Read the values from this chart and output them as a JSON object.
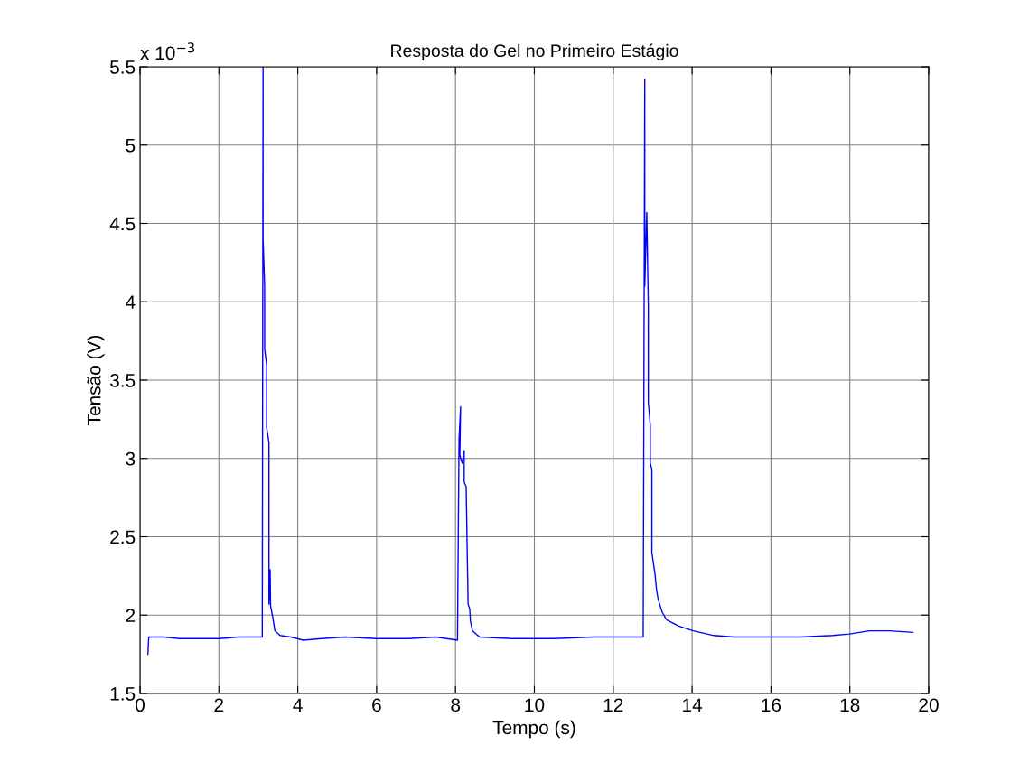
{
  "chart_data": {
    "type": "line",
    "title": "Resposta do Gel no Primeiro Estágio",
    "xlabel": "Tempo (s)",
    "ylabel": "Tensão (V)",
    "annotations": [
      "x 10$^{−3}$"
    ],
    "series": [
      {
        "color": "#0000ff",
        "x": [
          0.2,
          0.22,
          0.25,
          0.6,
          1.0,
          1.5,
          2.0,
          2.5,
          3.0,
          3.1,
          3.12,
          3.12,
          3.16,
          3.16,
          3.21,
          3.21,
          3.27,
          3.27,
          3.3,
          3.31,
          3.37,
          3.42,
          3.55,
          3.82,
          4.14,
          4.6,
          5.2,
          6.0,
          6.8,
          7.5,
          8.05,
          8.09,
          8.13,
          8.11,
          8.17,
          8.22,
          8.22,
          8.27,
          8.32,
          8.36,
          8.38,
          8.43,
          8.61,
          9.43,
          10.5,
          11.5,
          12.7,
          12.76,
          12.8,
          12.8,
          12.85,
          12.89,
          12.89,
          12.94,
          12.94,
          12.98,
          12.98,
          13.06,
          13.1,
          13.14,
          13.24,
          13.35,
          13.66,
          14.03,
          14.55,
          15.07,
          16.0,
          16.74,
          17.57,
          17.99,
          18.5,
          19.0,
          19.6
        ],
        "values": [
          1.75,
          1.86,
          1.86,
          1.86,
          1.85,
          1.85,
          1.85,
          1.86,
          1.86,
          1.86,
          5.5,
          4.4,
          4.1,
          3.7,
          3.6,
          3.2,
          3.1,
          2.07,
          2.29,
          2.06,
          1.98,
          1.9,
          1.87,
          1.86,
          1.84,
          1.85,
          1.86,
          1.85,
          1.85,
          1.86,
          1.84,
          3.13,
          3.33,
          3.02,
          2.97,
          3.05,
          2.85,
          2.82,
          2.07,
          2.04,
          1.96,
          1.9,
          1.86,
          1.85,
          1.85,
          1.86,
          1.86,
          1.86,
          5.42,
          4.1,
          4.57,
          3.98,
          3.36,
          3.21,
          2.97,
          2.93,
          2.4,
          2.26,
          2.16,
          2.1,
          2.02,
          1.97,
          1.93,
          1.9,
          1.87,
          1.86,
          1.86,
          1.86,
          1.87,
          1.88,
          1.9,
          1.9,
          1.89
        ]
      }
    ],
    "xlim": [
      0,
      20
    ],
    "xticks": [
      0,
      2,
      4,
      6,
      8,
      10,
      12,
      14,
      16,
      18,
      20
    ],
    "ylim": [
      1.5,
      5.5
    ],
    "yticks": [
      1.5,
      2,
      2.5,
      3,
      3.5,
      4,
      4.5,
      5,
      5.5
    ],
    "grid": true,
    "marker": "none",
    "line_style": "solid"
  }
}
